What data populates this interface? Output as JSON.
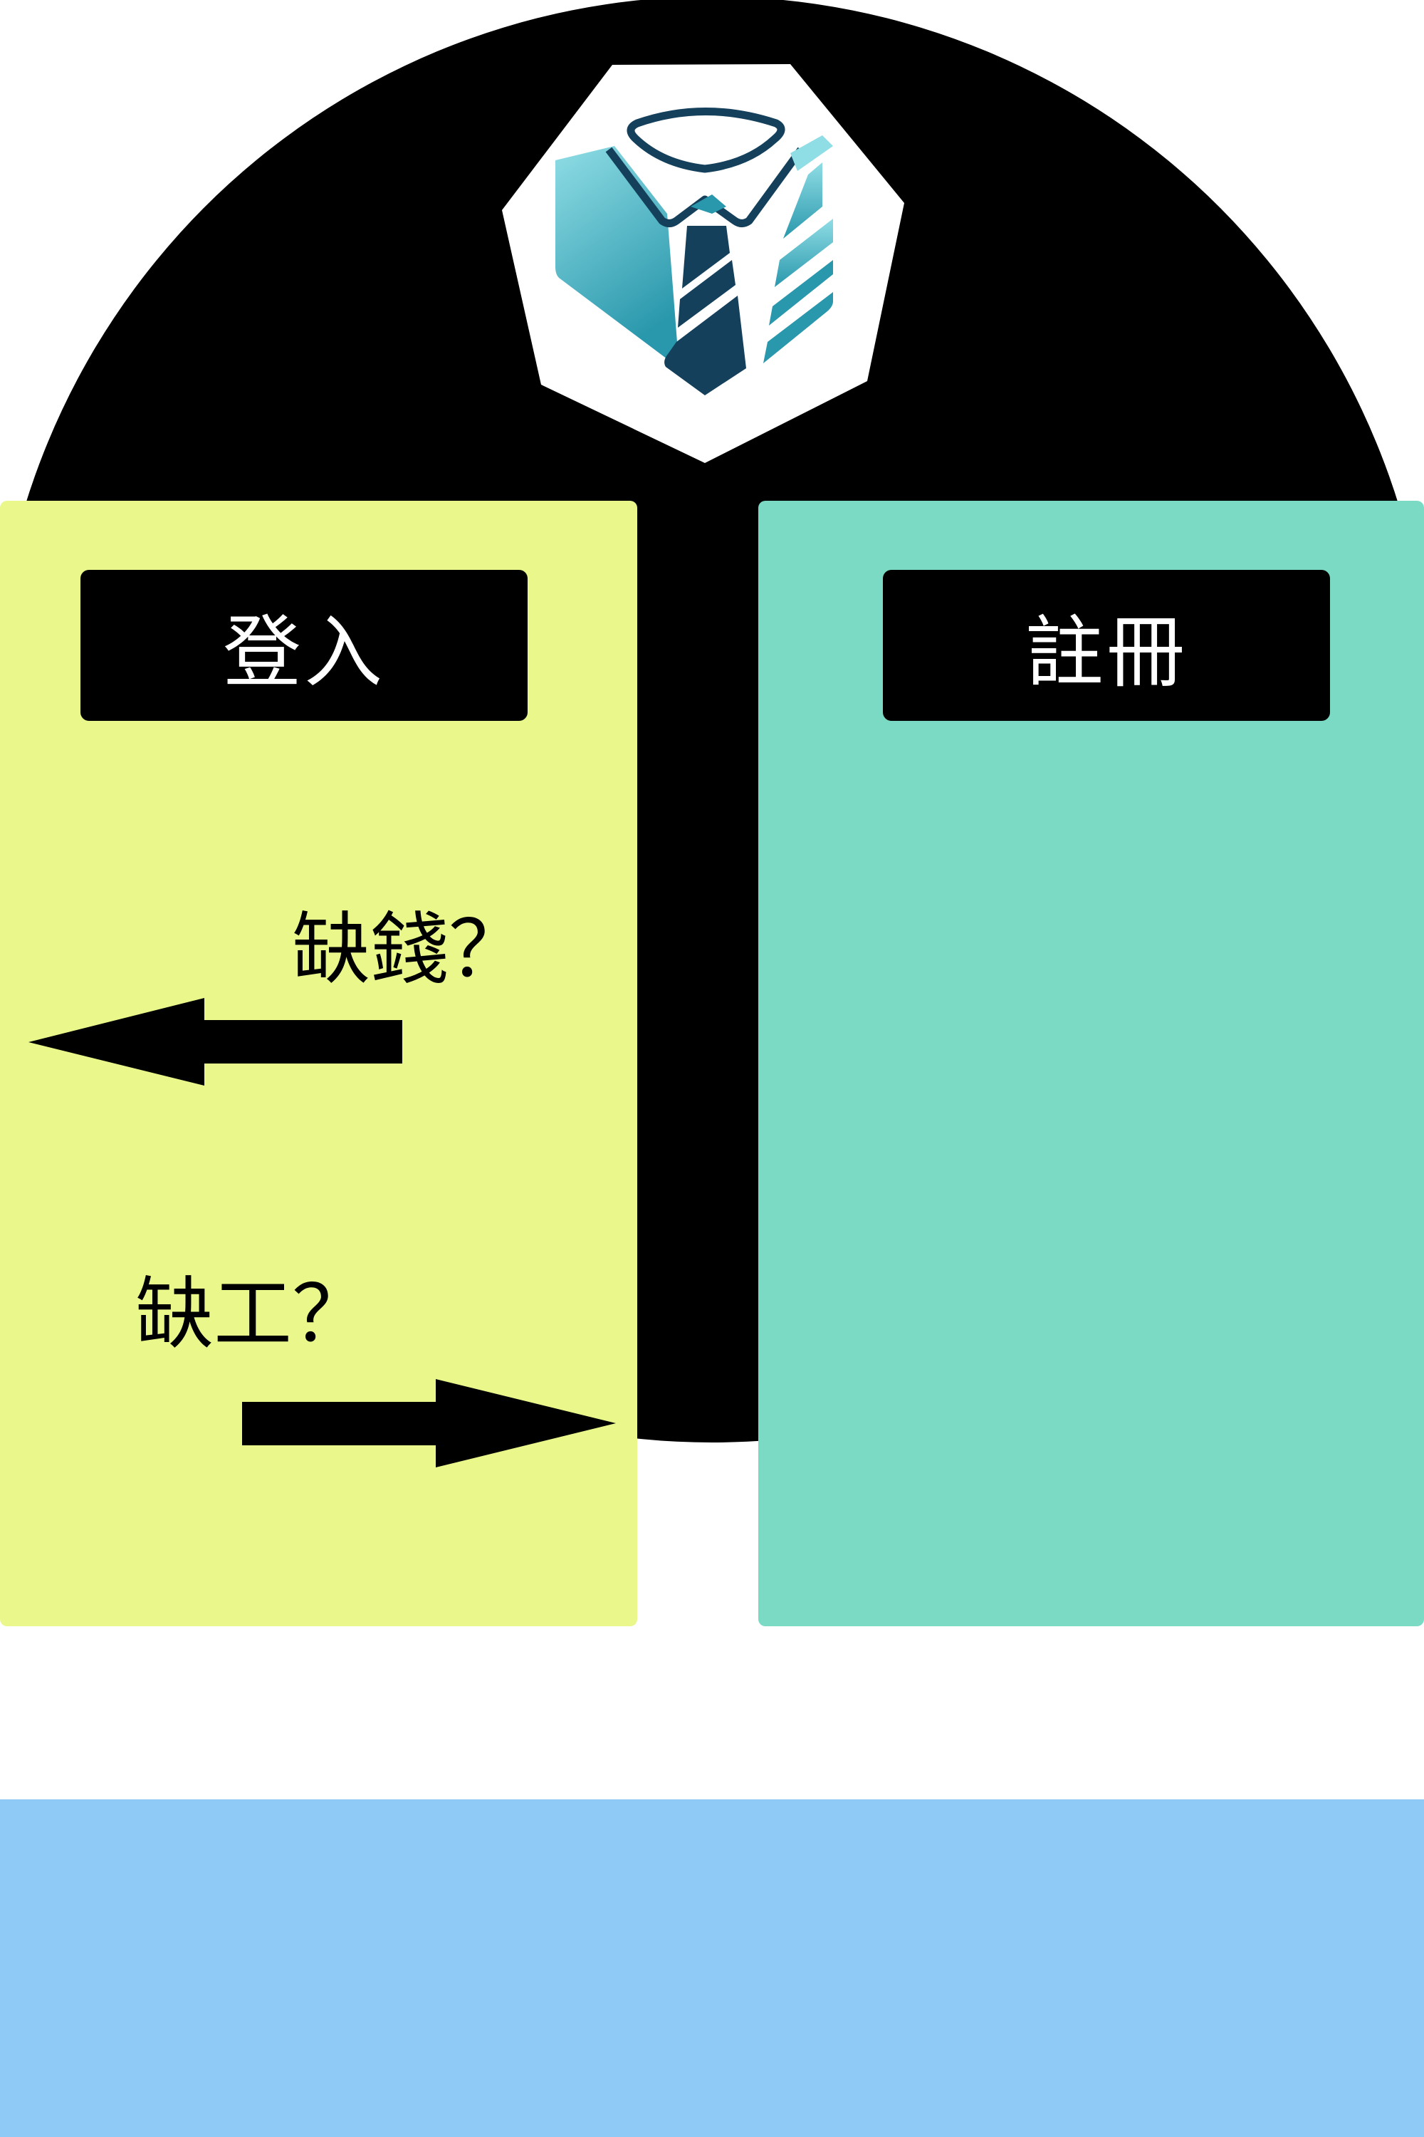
{
  "login": {
    "label": "登入"
  },
  "register": {
    "label": "註冊"
  },
  "prompts": {
    "need_money": "缺錢？",
    "need_labor": "缺工？"
  },
  "icons": {
    "logo": "suit-and-tie-logo-icon",
    "left_arrow": "arrow-left-icon",
    "right_arrow": "arrow-right-icon"
  },
  "colors": {
    "arch": "#000000",
    "login_panel": "#EAF78B",
    "register_panel": "#7BDAC4",
    "bottom_band": "#8ECAF5",
    "button_bg": "#000000",
    "button_text": "#FFFFFF",
    "logo_dark": "#14405C",
    "logo_mid": "#2A98AC",
    "logo_light": "#8FDDE5"
  }
}
